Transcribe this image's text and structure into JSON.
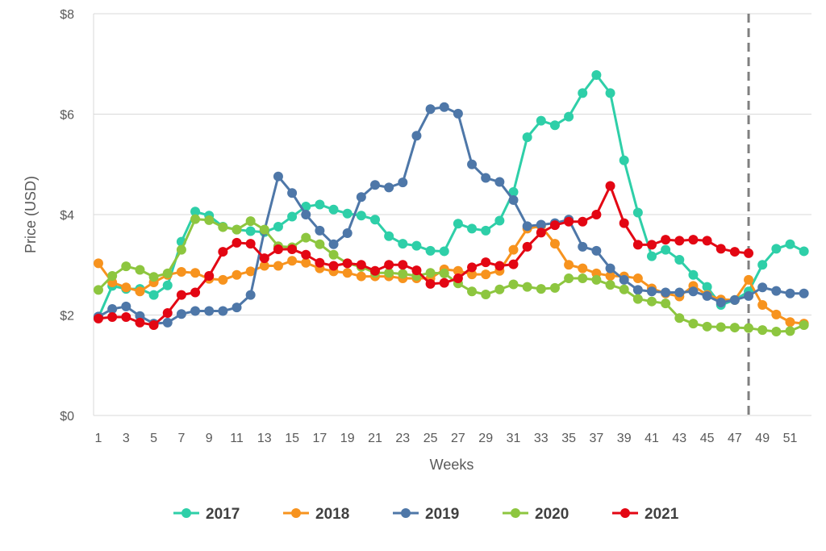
{
  "chart_data": {
    "type": "line",
    "title": "",
    "xlabel": "Weeks",
    "ylabel": "Price (USD)",
    "xlim": [
      1,
      52
    ],
    "ylim": [
      0,
      8
    ],
    "yticks": [
      0,
      2,
      4,
      6,
      8
    ],
    "ytick_labels": [
      "$0",
      "$2",
      "$4",
      "$6",
      "$8"
    ],
    "xticks": [
      1,
      3,
      5,
      7,
      9,
      11,
      13,
      15,
      17,
      19,
      21,
      23,
      25,
      27,
      29,
      31,
      33,
      35,
      37,
      39,
      41,
      43,
      45,
      47,
      49,
      51
    ],
    "xtick_labels": [
      "1",
      "3",
      "5",
      "7",
      "9",
      "11",
      "13",
      "15",
      "17",
      "19",
      "21",
      "23",
      "25",
      "27",
      "29",
      "31",
      "33",
      "35",
      "37",
      "39",
      "41",
      "43",
      "45",
      "47",
      "49",
      "51"
    ],
    "grid": true,
    "legend_position": "bottom",
    "reference_line": {
      "x": 48,
      "style": "dashed",
      "color": "#7f7f7f"
    },
    "series": [
      {
        "name": "2017",
        "color": "#2ecfa8",
        "x": [
          1,
          2,
          3,
          4,
          5,
          6,
          7,
          8,
          9,
          10,
          11,
          12,
          13,
          14,
          15,
          16,
          17,
          18,
          19,
          20,
          21,
          22,
          23,
          24,
          25,
          26,
          27,
          28,
          29,
          30,
          31,
          32,
          33,
          34,
          35,
          36,
          37,
          38,
          39,
          40,
          41,
          42,
          43,
          44,
          45,
          46,
          47,
          48,
          49,
          50,
          51,
          52
        ],
        "values": [
          1.95,
          2.58,
          2.52,
          2.52,
          2.4,
          2.59,
          3.46,
          4.06,
          3.98,
          3.76,
          3.7,
          3.67,
          3.65,
          3.76,
          3.96,
          4.16,
          4.2,
          4.1,
          4.02,
          3.98,
          3.9,
          3.57,
          3.42,
          3.38,
          3.28,
          3.27,
          3.82,
          3.72,
          3.68,
          3.88,
          4.45,
          5.54,
          5.87,
          5.78,
          5.95,
          6.42,
          6.78,
          6.42,
          5.08,
          4.04,
          3.17,
          3.3,
          3.1,
          2.8,
          2.56,
          2.2,
          2.3,
          2.47,
          3.0,
          3.32,
          3.41,
          3.27
        ]
      },
      {
        "name": "2018",
        "color": "#f7931e",
        "x": [
          1,
          2,
          3,
          4,
          5,
          6,
          7,
          8,
          9,
          10,
          11,
          12,
          13,
          14,
          15,
          16,
          17,
          18,
          19,
          20,
          21,
          22,
          23,
          24,
          25,
          26,
          27,
          28,
          29,
          30,
          31,
          32,
          33,
          34,
          35,
          36,
          37,
          38,
          39,
          40,
          41,
          42,
          43,
          44,
          45,
          46,
          47,
          48,
          49,
          50,
          51,
          52
        ],
        "values": [
          3.03,
          2.65,
          2.55,
          2.47,
          2.65,
          2.8,
          2.86,
          2.84,
          2.72,
          2.7,
          2.8,
          2.87,
          2.98,
          2.98,
          3.08,
          3.04,
          2.93,
          2.87,
          2.84,
          2.77,
          2.77,
          2.77,
          2.73,
          2.73,
          2.73,
          2.91,
          2.88,
          2.81,
          2.81,
          2.88,
          3.3,
          3.72,
          3.77,
          3.42,
          3.0,
          2.93,
          2.83,
          2.78,
          2.77,
          2.73,
          2.53,
          2.43,
          2.37,
          2.58,
          2.4,
          2.31,
          2.3,
          2.7,
          2.2,
          2.01,
          1.86,
          1.83
        ]
      },
      {
        "name": "2019",
        "color": "#4e77a8",
        "x": [
          1,
          2,
          3,
          4,
          5,
          6,
          7,
          8,
          9,
          10,
          11,
          12,
          13,
          14,
          15,
          16,
          17,
          18,
          19,
          20,
          21,
          22,
          23,
          24,
          25,
          26,
          27,
          28,
          29,
          30,
          31,
          32,
          33,
          34,
          35,
          36,
          37,
          38,
          39,
          40,
          41,
          42,
          43,
          44,
          45,
          46,
          47,
          48,
          49,
          50,
          51,
          52
        ],
        "values": [
          1.97,
          2.12,
          2.17,
          1.98,
          1.83,
          1.85,
          2.02,
          2.08,
          2.08,
          2.08,
          2.15,
          2.4,
          3.68,
          4.76,
          4.43,
          4.0,
          3.68,
          3.41,
          3.63,
          4.35,
          4.59,
          4.54,
          4.64,
          5.57,
          6.1,
          6.14,
          6.01,
          5.0,
          4.73,
          4.65,
          4.29,
          3.77,
          3.8,
          3.83,
          3.9,
          3.36,
          3.28,
          2.93,
          2.7,
          2.5,
          2.47,
          2.45,
          2.45,
          2.47,
          2.38,
          2.25,
          2.3,
          2.38,
          2.55,
          2.48,
          2.43,
          2.43
        ]
      },
      {
        "name": "2020",
        "color": "#8dc63f",
        "x": [
          1,
          2,
          3,
          4,
          5,
          6,
          7,
          8,
          9,
          10,
          11,
          12,
          13,
          14,
          15,
          16,
          17,
          18,
          19,
          20,
          21,
          22,
          23,
          24,
          25,
          26,
          27,
          28,
          29,
          30,
          31,
          32,
          33,
          34,
          35,
          36,
          37,
          38,
          39,
          40,
          41,
          42,
          43,
          44,
          45,
          46,
          47,
          48,
          49,
          50,
          51,
          52
        ],
        "values": [
          2.5,
          2.78,
          2.97,
          2.9,
          2.76,
          2.83,
          3.3,
          3.91,
          3.89,
          3.75,
          3.7,
          3.87,
          3.7,
          3.37,
          3.35,
          3.54,
          3.41,
          3.2,
          3.03,
          2.96,
          2.84,
          2.84,
          2.82,
          2.78,
          2.84,
          2.83,
          2.63,
          2.47,
          2.41,
          2.51,
          2.61,
          2.56,
          2.52,
          2.54,
          2.73,
          2.73,
          2.7,
          2.6,
          2.51,
          2.32,
          2.27,
          2.23,
          1.94,
          1.83,
          1.77,
          1.76,
          1.75,
          1.74,
          1.7,
          1.67,
          1.68,
          1.8
        ]
      },
      {
        "name": "2021",
        "color": "#e30613",
        "x": [
          1,
          2,
          3,
          4,
          5,
          6,
          7,
          8,
          9,
          10,
          11,
          12,
          13,
          14,
          15,
          16,
          17,
          18,
          19,
          20,
          21,
          22,
          23,
          24,
          25,
          26,
          27,
          28,
          29,
          30,
          31,
          32,
          33,
          34,
          35,
          36,
          37,
          38,
          39,
          40,
          41,
          42,
          43,
          44,
          45,
          46,
          47,
          48
        ],
        "values": [
          1.93,
          1.96,
          1.96,
          1.85,
          1.8,
          2.04,
          2.4,
          2.45,
          2.78,
          3.26,
          3.44,
          3.42,
          3.13,
          3.31,
          3.31,
          3.2,
          3.04,
          2.98,
          3.03,
          3.0,
          2.88,
          3.0,
          3.0,
          2.89,
          2.62,
          2.64,
          2.73,
          2.95,
          3.05,
          2.98,
          3.01,
          3.36,
          3.64,
          3.79,
          3.86,
          3.86,
          4.0,
          4.57,
          3.83,
          3.4,
          3.4,
          3.5,
          3.48,
          3.5,
          3.48,
          3.32,
          3.26,
          3.23
        ]
      }
    ]
  }
}
